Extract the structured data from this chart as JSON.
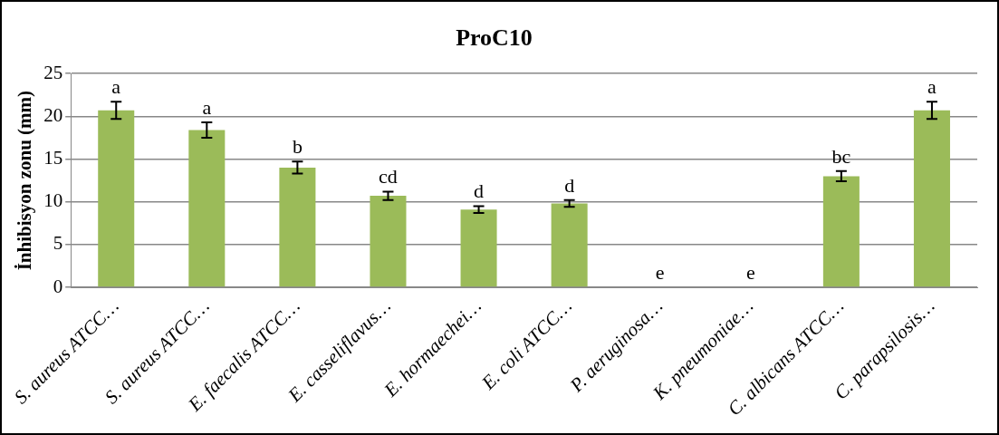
{
  "chart_data": {
    "type": "bar",
    "title": "ProC10",
    "ylabel": "İnhibisyon zonu (mm)",
    "categories": [
      "S. aureus ATCC…",
      "S. aureus ATCC…",
      "E. faecalis ATCC…",
      "E. casseliflavus…",
      "E. hormaechei…",
      "E. coli ATCC…",
      "P. aeruginosa…",
      "K. pneumoniae…",
      "C. albicans ATCC…",
      "C. parapsilosis…"
    ],
    "values": [
      20.7,
      18.4,
      14.0,
      10.7,
      9.1,
      9.8,
      0,
      0,
      13.0,
      20.7
    ],
    "errors": [
      1.0,
      0.9,
      0.7,
      0.5,
      0.4,
      0.4,
      null,
      null,
      0.6,
      1.0
    ],
    "color": "#9bbb59",
    "ylim": [
      0,
      25
    ],
    "yticks": [
      0,
      5,
      10,
      15,
      20,
      25
    ],
    "grid": "y",
    "legend": false,
    "value_labels": [
      "a",
      "a",
      "b",
      "cd",
      "d",
      "d",
      "e",
      "e",
      "bc",
      "a"
    ]
  }
}
